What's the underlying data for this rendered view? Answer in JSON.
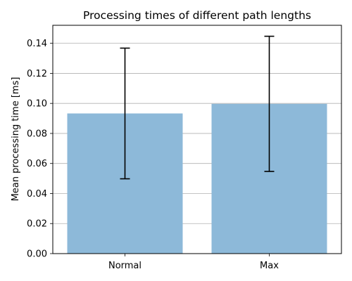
{
  "chart_data": {
    "type": "bar",
    "title": "Processing times of different path lengths",
    "xlabel": "",
    "ylabel": "Mean processing time [ms]",
    "categories": [
      "Normal",
      "Max"
    ],
    "series": [
      {
        "values": [
          0.0933,
          0.0997
        ],
        "error": [
          0.0435,
          0.045
        ],
        "color": "#8db9d9"
      }
    ],
    "ylim": [
      0,
      0.152
    ],
    "yticks": [
      0.0,
      0.02,
      0.04,
      0.06,
      0.08,
      0.1,
      0.12,
      0.14
    ],
    "ytick_labels": [
      "0.00",
      "0.02",
      "0.04",
      "0.06",
      "0.08",
      "0.10",
      "0.12",
      "0.14"
    ],
    "grid": "y",
    "legend": "none"
  }
}
